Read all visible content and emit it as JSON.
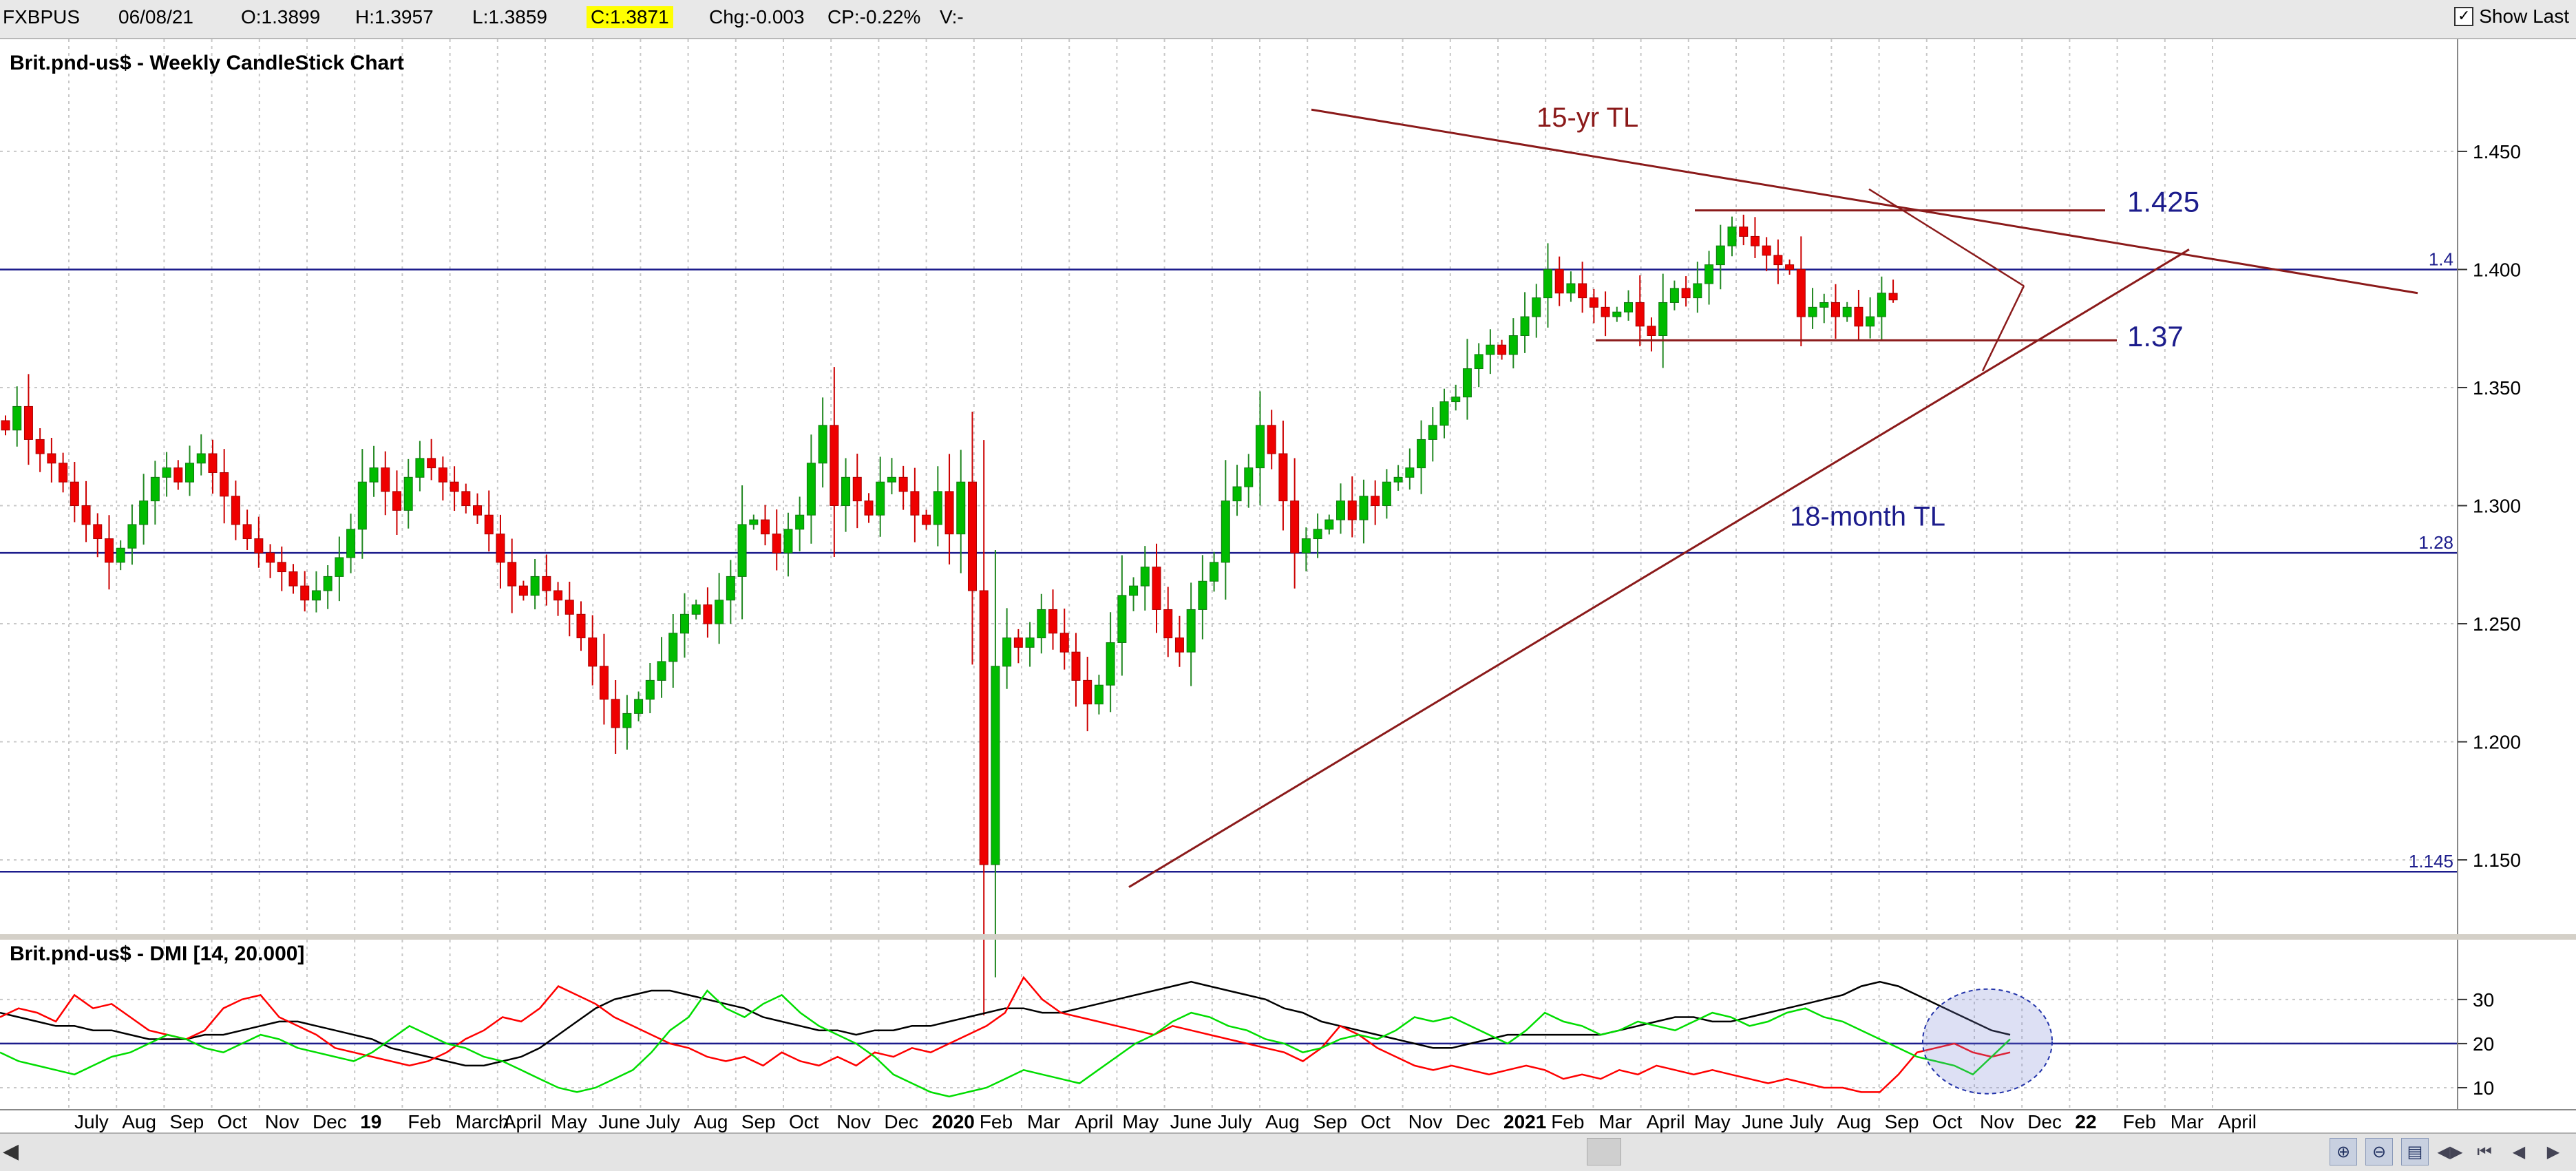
{
  "topbar": {
    "symbol": "FXBPUS",
    "date": "06/08/21",
    "open": "O:1.3899",
    "high": "H:1.3957",
    "low": "L:1.3859",
    "close": "C:1.3871",
    "change": "Chg:-0.003",
    "change_pct": "CP:-0.22%",
    "volume": "V:-",
    "show_last_label": "Show Last",
    "show_last_checked": true
  },
  "chart_data": [
    {
      "type": "candlestick",
      "title": "Brit.pnd-us$ - Weekly CandleStick Chart",
      "y_range": [
        1.12,
        1.48
      ],
      "y_ticks": [
        "1.150",
        "1.200",
        "1.250",
        "1.300",
        "1.350",
        "1.400",
        "1.450"
      ],
      "x_tick_labels": [
        "July",
        "Aug",
        "Sep",
        "Oct",
        "Nov",
        "Dec",
        "19",
        "Feb",
        "March",
        "April",
        "May",
        "June",
        "July",
        "Aug",
        "Sep",
        "Oct",
        "Nov",
        "Dec",
        "2020",
        "Feb",
        "Mar",
        "April",
        "May",
        "June",
        "July",
        "Aug",
        "Sep",
        "Oct",
        "Nov",
        "Dec",
        "2021",
        "Feb",
        "Mar",
        "April",
        "May",
        "June",
        "July",
        "Aug",
        "Sep",
        "Oct",
        "Nov",
        "Dec",
        "22",
        "Feb",
        "Mar",
        "April"
      ],
      "horizontal_levels": [
        {
          "value": 1.4,
          "label": "1.4"
        },
        {
          "value": 1.28,
          "label": "1.28"
        },
        {
          "value": 1.145,
          "label": "1.145"
        }
      ],
      "annotations": [
        {
          "label": "15-yr TL",
          "kind": "trendline",
          "color": "#8b1a1a"
        },
        {
          "label": "18-month TL",
          "kind": "trendline",
          "color": "#8b1a1a"
        },
        {
          "label": "1.425",
          "kind": "level",
          "value": 1.425
        },
        {
          "label": "1.37",
          "kind": "level",
          "value": 1.37
        }
      ],
      "weekly_close": [
        1.332,
        1.342,
        1.328,
        1.322,
        1.318,
        1.31,
        1.3,
        1.292,
        1.286,
        1.276,
        1.282,
        1.292,
        1.302,
        1.312,
        1.316,
        1.31,
        1.318,
        1.322,
        1.314,
        1.304,
        1.292,
        1.286,
        1.28,
        1.276,
        1.272,
        1.266,
        1.26,
        1.264,
        1.27,
        1.278,
        1.29,
        1.31,
        1.316,
        1.306,
        1.298,
        1.312,
        1.32,
        1.316,
        1.31,
        1.306,
        1.3,
        1.296,
        1.288,
        1.276,
        1.266,
        1.262,
        1.27,
        1.264,
        1.26,
        1.254,
        1.244,
        1.232,
        1.218,
        1.206,
        1.212,
        1.218,
        1.226,
        1.234,
        1.246,
        1.254,
        1.258,
        1.25,
        1.26,
        1.27,
        1.292,
        1.294,
        1.288,
        1.28,
        1.29,
        1.296,
        1.318,
        1.334,
        1.3,
        1.312,
        1.302,
        1.296,
        1.31,
        1.312,
        1.306,
        1.296,
        1.292,
        1.306,
        1.288,
        1.31,
        1.264,
        1.148,
        1.232,
        1.244,
        1.24,
        1.244,
        1.256,
        1.246,
        1.238,
        1.226,
        1.216,
        1.224,
        1.242,
        1.262,
        1.266,
        1.274,
        1.256,
        1.244,
        1.238,
        1.256,
        1.268,
        1.276,
        1.302,
        1.308,
        1.316,
        1.334,
        1.322,
        1.302,
        1.28,
        1.286,
        1.29,
        1.294,
        1.302,
        1.294,
        1.304,
        1.3,
        1.31,
        1.312,
        1.316,
        1.328,
        1.334,
        1.344,
        1.346,
        1.358,
        1.364,
        1.368,
        1.364,
        1.372,
        1.38,
        1.388,
        1.4,
        1.39,
        1.394,
        1.388,
        1.384,
        1.38,
        1.382,
        1.386,
        1.376,
        1.372,
        1.386,
        1.392,
        1.388,
        1.394,
        1.402,
        1.41,
        1.418,
        1.414,
        1.41,
        1.406,
        1.402,
        1.4,
        1.38,
        1.384,
        1.386,
        1.38,
        1.384,
        1.376,
        1.38,
        1.39,
        1.387
      ],
      "last_candle": {
        "open": 1.3899,
        "high": 1.3957,
        "low": 1.3859,
        "close": 1.3871
      }
    },
    {
      "type": "line",
      "title": "Brit.pnd-us$ - DMI [14, 20.000]",
      "y_range": [
        5,
        37
      ],
      "y_ticks": [
        "10",
        "20",
        "30"
      ],
      "threshold": 20,
      "series": [
        {
          "name": "",
          "color": "#000000",
          "values": [
            27,
            26,
            25,
            24,
            24,
            23,
            23,
            22,
            21,
            21,
            21,
            22,
            22,
            23,
            24,
            25,
            25,
            24,
            23,
            22,
            21,
            19,
            18,
            17,
            16,
            15,
            15,
            16,
            17,
            19,
            22,
            25,
            28,
            30,
            31,
            32,
            32,
            31,
            30,
            29,
            28,
            26,
            25,
            24,
            23,
            23,
            22,
            23,
            23,
            24,
            24,
            25,
            26,
            27,
            28,
            28,
            27,
            27,
            28,
            29,
            30,
            31,
            32,
            33,
            34,
            33,
            32,
            31,
            30,
            28,
            27,
            25,
            24,
            23,
            22,
            21,
            20,
            19,
            19,
            20,
            21,
            22,
            22,
            22,
            22,
            22,
            22,
            23,
            24,
            25,
            26,
            26,
            25,
            25,
            26,
            27,
            28,
            29,
            30,
            31,
            33,
            34,
            33,
            31,
            29,
            27,
            25,
            23,
            22
          ]
        },
        {
          "name": "",
          "color": "#ff0000",
          "values": [
            26,
            28,
            27,
            25,
            31,
            28,
            29,
            26,
            23,
            22,
            21,
            23,
            28,
            30,
            31,
            26,
            24,
            22,
            19,
            18,
            17,
            16,
            15,
            16,
            18,
            21,
            23,
            26,
            25,
            28,
            33,
            31,
            29,
            26,
            24,
            22,
            20,
            19,
            17,
            16,
            17,
            15,
            18,
            16,
            15,
            17,
            15,
            18,
            17,
            19,
            18,
            20,
            22,
            24,
            27,
            35,
            30,
            27,
            26,
            25,
            24,
            23,
            22,
            24,
            23,
            22,
            21,
            20,
            19,
            18,
            16,
            19,
            24,
            22,
            19,
            17,
            15,
            14,
            15,
            14,
            13,
            14,
            15,
            14,
            12,
            13,
            12,
            14,
            13,
            15,
            14,
            13,
            14,
            13,
            12,
            11,
            12,
            11,
            10,
            10,
            9,
            9,
            13,
            18,
            19,
            20,
            18,
            17,
            18
          ]
        },
        {
          "name": "",
          "color": "#00dd00",
          "values": [
            18,
            16,
            15,
            14,
            13,
            15,
            17,
            18,
            20,
            22,
            21,
            19,
            18,
            20,
            22,
            21,
            19,
            18,
            17,
            16,
            18,
            21,
            24,
            22,
            20,
            19,
            17,
            16,
            14,
            12,
            10,
            9,
            10,
            12,
            14,
            18,
            23,
            26,
            32,
            28,
            26,
            29,
            31,
            27,
            24,
            22,
            20,
            17,
            13,
            11,
            9,
            8,
            9,
            10,
            12,
            14,
            13,
            12,
            11,
            14,
            17,
            20,
            22,
            25,
            27,
            26,
            24,
            23,
            21,
            20,
            18,
            19,
            21,
            22,
            21,
            23,
            26,
            25,
            26,
            24,
            22,
            20,
            23,
            27,
            25,
            24,
            22,
            23,
            25,
            24,
            23,
            25,
            27,
            26,
            24,
            25,
            27,
            28,
            26,
            25,
            23,
            21,
            19,
            17,
            16,
            15,
            13,
            17,
            21
          ]
        }
      ]
    }
  ],
  "bottombar": {
    "scroll_left_icon": "arrow-left-icon",
    "nav_icons": [
      "zoom-icon",
      "zoom-icon",
      "print-icon",
      "scroll-both-icon",
      "scroll-first-icon",
      "scroll-prev-icon",
      "scroll-next-icon"
    ]
  }
}
